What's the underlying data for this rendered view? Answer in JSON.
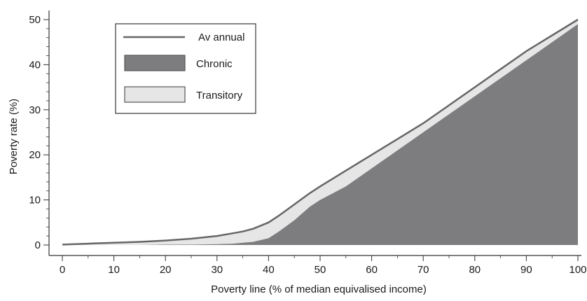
{
  "chart_data": {
    "type": "area",
    "title": "",
    "xlabel": "Poverty line (% of median equivalised income)",
    "ylabel": "Poverty rate (%)",
    "xlim": [
      0,
      100
    ],
    "ylim": [
      0,
      50
    ],
    "xticks": [
      0,
      10,
      20,
      30,
      40,
      50,
      60,
      70,
      80,
      90,
      100
    ],
    "yticks": [
      0,
      10,
      20,
      30,
      40,
      50
    ],
    "grid": false,
    "legend_position": "top-left",
    "x": [
      0,
      5,
      10,
      15,
      20,
      25,
      30,
      33,
      35,
      37,
      40,
      42,
      45,
      48,
      50,
      55,
      60,
      65,
      70,
      75,
      80,
      85,
      90,
      95,
      100
    ],
    "series": [
      {
        "name": "Av annual",
        "style": "line",
        "color": "#666666",
        "values": [
          0.1,
          0.3,
          0.5,
          0.7,
          1.0,
          1.4,
          2.0,
          2.6,
          3.0,
          3.6,
          5.0,
          6.5,
          9.0,
          11.5,
          13.0,
          16.5,
          20.0,
          23.5,
          27.0,
          31.0,
          35.0,
          39.0,
          43.0,
          46.5,
          50.0
        ]
      },
      {
        "name": "Chronic",
        "style": "area",
        "color": "#7d7d80",
        "values": [
          0.0,
          0.0,
          0.0,
          0.0,
          0.1,
          0.1,
          0.2,
          0.3,
          0.5,
          0.7,
          1.5,
          3.0,
          5.5,
          8.5,
          10.0,
          13.0,
          17.0,
          21.0,
          25.0,
          29.0,
          33.0,
          37.0,
          41.0,
          45.0,
          49.0
        ]
      },
      {
        "name": "Transitory",
        "style": "area",
        "color": "#e6e6e6",
        "values": [
          0.1,
          0.3,
          0.5,
          0.7,
          0.9,
          1.3,
          1.8,
          2.3,
          2.5,
          2.9,
          3.5,
          3.5,
          3.5,
          3.0,
          3.0,
          3.5,
          3.0,
          2.5,
          2.0,
          2.0,
          2.0,
          2.0,
          2.0,
          1.5,
          1.0
        ]
      }
    ]
  },
  "colors": {
    "axis": "#333333",
    "legend_border": "#444444",
    "outline": "#555555"
  }
}
